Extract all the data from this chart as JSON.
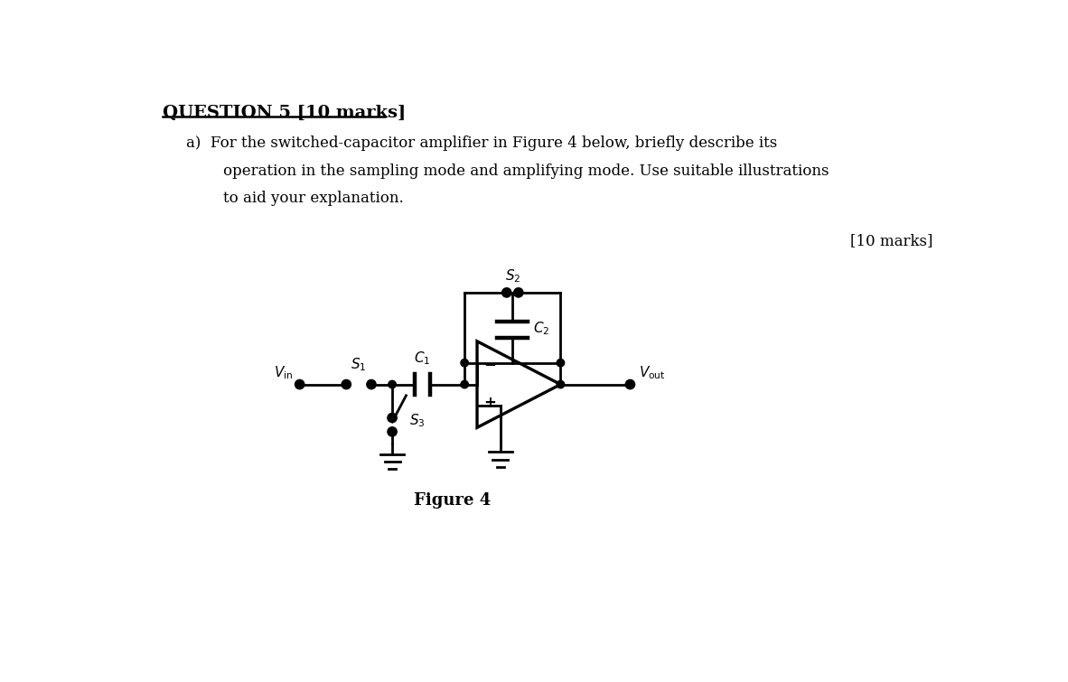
{
  "bg_color": "#ffffff",
  "text_color": "#000000",
  "lw": 2.0,
  "title": "QUESTION 5 [10 marks]",
  "line1": "a)  For the switched-capacitor amplifier in Figure 4 below, briefly describe its",
  "line2": "operation in the sampling mode and amplifying mode. Use suitable illustrations",
  "line3": "to aid your explanation.",
  "marks_note": "[10 marks]",
  "figure_label": "Figure 4"
}
